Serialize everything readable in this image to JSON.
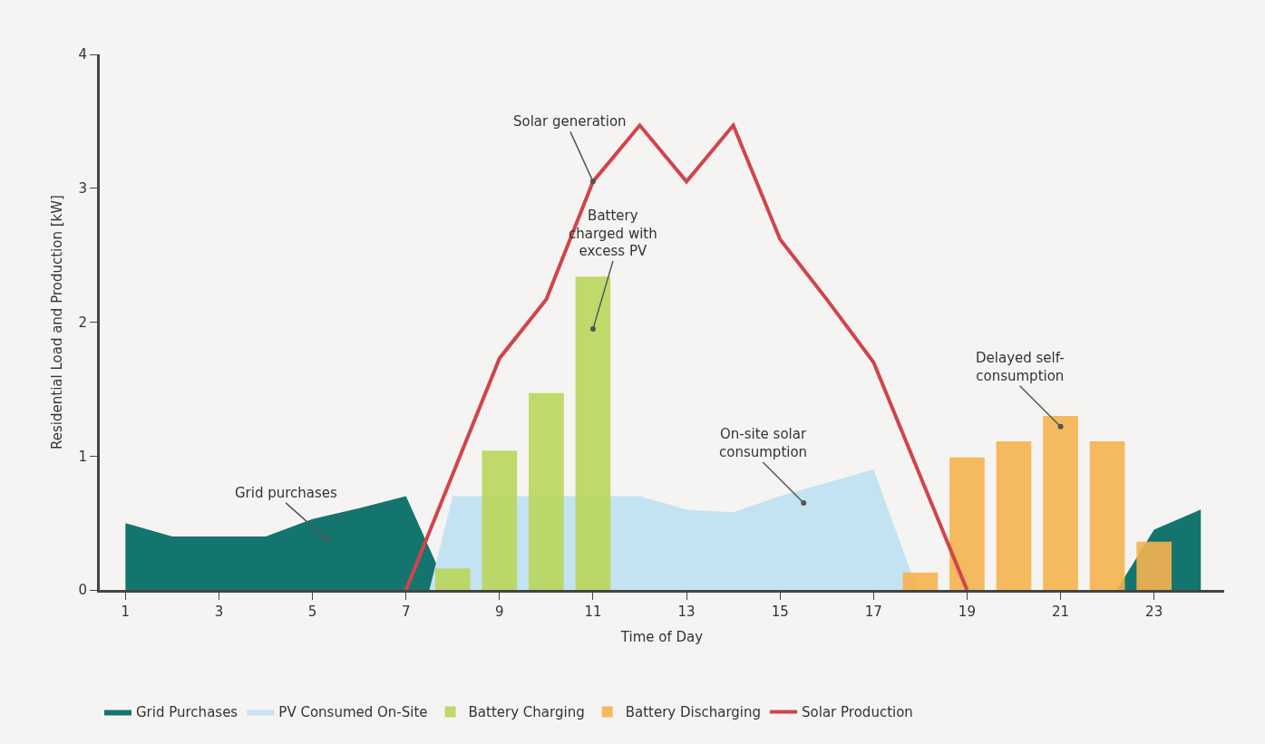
{
  "chart_data": {
    "type": "bar",
    "xlabel": "Time of Day",
    "ylabel": "Residential Load and Production [kW]",
    "xlim": [
      0.45,
      24.5
    ],
    "xticks": [
      1,
      3,
      5,
      7,
      9,
      11,
      13,
      15,
      17,
      19,
      21,
      23
    ],
    "ylim": [
      0,
      4
    ],
    "yticks": [
      0,
      1,
      2,
      3,
      4
    ],
    "legend": "bottom",
    "marker": "none",
    "series": [
      {
        "name": "Grid Purchases",
        "type": "area",
        "color": "#14756e",
        "x": [
          1,
          2,
          3,
          4,
          5,
          6,
          7,
          7.9,
          22.2,
          23,
          24
        ],
        "values": [
          0.5,
          0.4,
          0.4,
          0.4,
          0.53,
          0.61,
          0.7,
          0,
          0,
          0.45,
          0.6
        ]
      },
      {
        "name": "PV Consumed On-Site",
        "type": "area",
        "color": "#c3e3f2",
        "x": [
          7.5,
          8,
          9,
          10,
          11,
          12,
          13,
          14,
          15,
          16,
          17,
          17.94
        ],
        "values": [
          0,
          0.7,
          0.7,
          0.7,
          0.7,
          0.7,
          0.6,
          0.58,
          0.7,
          0.8,
          0.9,
          0
        ]
      },
      {
        "name": "Battery Charging",
        "color": "#b9d65b",
        "x": [
          8,
          9,
          10,
          11
        ],
        "values": [
          0.16,
          1.04,
          1.47,
          2.34
        ]
      },
      {
        "name": "Battery Discharging",
        "color": "#f6b34e",
        "x": [
          18,
          19,
          20,
          21,
          22,
          23
        ],
        "values": [
          0.13,
          0.99,
          1.11,
          1.3,
          1.11,
          0.36
        ]
      },
      {
        "name": "Solar Production",
        "type": "line",
        "color": "#d1444b",
        "x": [
          7,
          9,
          10,
          11,
          12,
          13,
          14,
          15,
          16,
          17,
          19
        ],
        "values": [
          0,
          1.73,
          2.17,
          3.05,
          3.47,
          3.05,
          3.47,
          2.62,
          2.17,
          1.7,
          0
        ]
      }
    ],
    "annotations": [
      {
        "text": "Solar generation",
        "x": 11,
        "y": 3.05
      },
      "Battery\ncharged with\nexcess PV",
      "On-site solar\nconsumption",
      "Delayed self-\nconsumption",
      "Grid purchases"
    ]
  }
}
